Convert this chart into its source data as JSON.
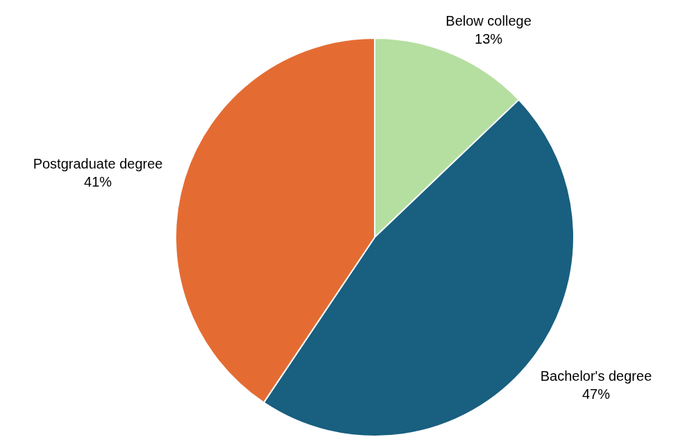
{
  "chart_data": {
    "type": "pie",
    "categories": [
      "Below college",
      "Bachelor's degree",
      "Postgraduate degree"
    ],
    "values": [
      13,
      47,
      41
    ],
    "colors": [
      "#b5dfa0",
      "#185f80",
      "#e46c33"
    ],
    "value_labels": [
      "13%",
      "47%",
      "41%"
    ]
  }
}
